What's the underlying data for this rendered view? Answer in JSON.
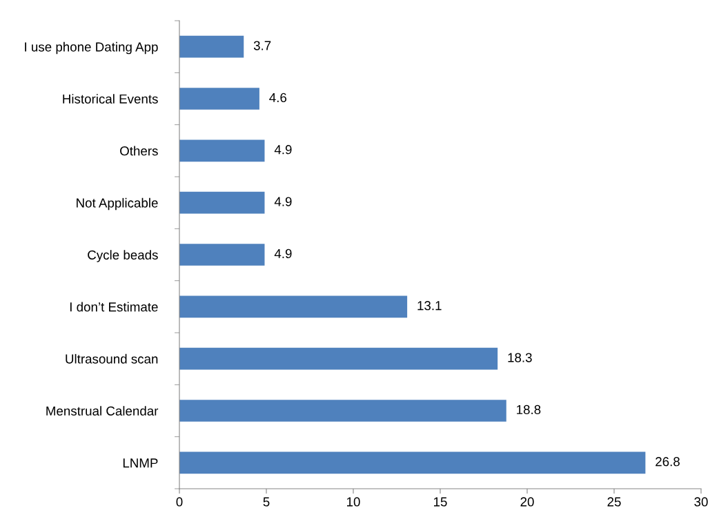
{
  "chart_data": {
    "type": "bar",
    "orientation": "horizontal",
    "categories": [
      "I use phone Dating App",
      "Historical Events",
      "Others",
      "Not Applicable",
      "Cycle beads",
      "I don’t Estimate",
      "Ultrasound scan",
      "Menstrual Calendar",
      "LNMP"
    ],
    "values": [
      3.7,
      4.6,
      4.9,
      4.9,
      4.9,
      13.1,
      18.3,
      18.8,
      26.8
    ],
    "color": "#4f81bd",
    "xlim": [
      0,
      30
    ],
    "xticks": [
      0,
      5,
      10,
      15,
      20,
      25,
      30
    ],
    "data_labels": true,
    "grid": false,
    "legend": false
  }
}
